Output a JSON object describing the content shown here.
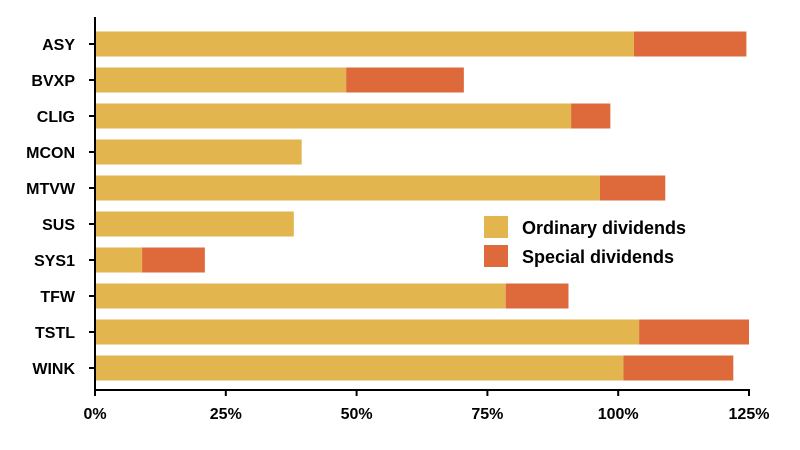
{
  "chart_data": {
    "type": "bar",
    "orientation": "horizontal",
    "stacked": true,
    "categories": [
      "ASY",
      "BVXP",
      "CLIG",
      "MCON",
      "MTVW",
      "SUS",
      "SYS1",
      "TFW",
      "TSTL",
      "WINK"
    ],
    "series": [
      {
        "name": "Ordinary dividends",
        "color": "#e3b54f",
        "values": [
          103,
          48,
          91,
          39.5,
          96.5,
          38,
          9,
          78.5,
          104,
          101
        ]
      },
      {
        "name": "Special dividends",
        "color": "#de6a3c",
        "values": [
          21.5,
          22.5,
          7.5,
          0,
          12.5,
          0,
          12,
          12,
          21,
          21
        ]
      }
    ],
    "x_ticks": [
      "0%",
      "25%",
      "50%",
      "75%",
      "100%",
      "125%"
    ],
    "xlim": [
      0,
      125
    ],
    "legend_position": "center-right",
    "grid": false
  }
}
